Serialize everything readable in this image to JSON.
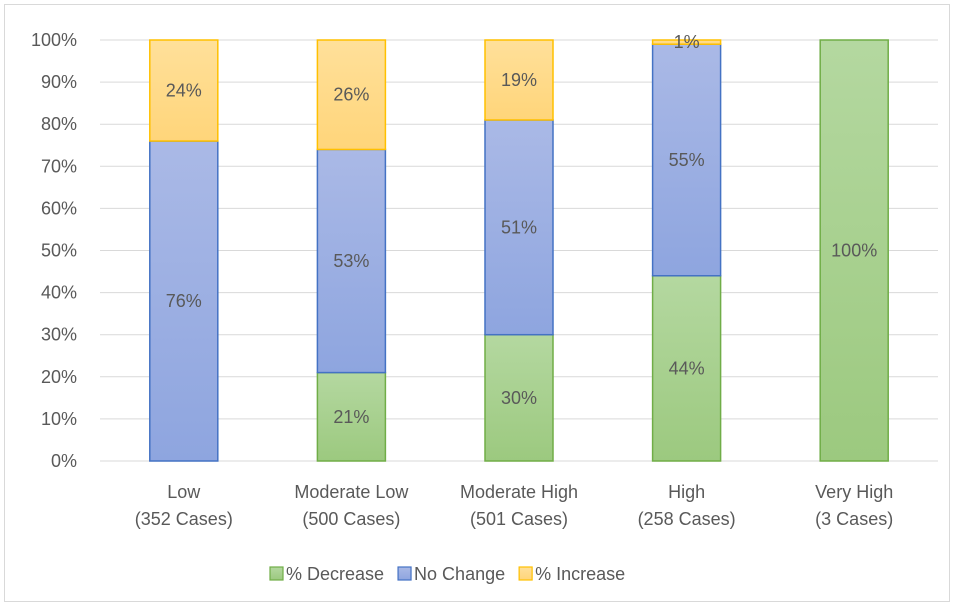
{
  "chart_data": {
    "type": "bar",
    "stacked": "percent",
    "categories": [
      [
        "Low",
        "(352 Cases)"
      ],
      [
        "Moderate Low",
        "(500 Cases)"
      ],
      [
        "Moderate High",
        "(501 Cases)"
      ],
      [
        "High",
        "(258 Cases)"
      ],
      [
        "Very High",
        "(3 Cases)"
      ]
    ],
    "series": [
      {
        "name": "% Decrease",
        "values": [
          0,
          21,
          30,
          44,
          100
        ],
        "labels": [
          "",
          "21%",
          "30%",
          "44%",
          "100%"
        ],
        "color": "#9cc97f",
        "color_light": "#b4d8a0",
        "stroke": "#70ad47"
      },
      {
        "name": "No Change",
        "values": [
          76,
          53,
          51,
          55,
          0
        ],
        "labels": [
          "76%",
          "53%",
          "51%",
          "55%",
          ""
        ],
        "color": "#8ea5df",
        "color_light": "#aab9e6",
        "stroke": "#4472c4"
      },
      {
        "name": "% Increase",
        "values": [
          24,
          26,
          19,
          1,
          0
        ],
        "labels": [
          "24%",
          "26%",
          "19%",
          "1%",
          ""
        ],
        "color": "#ffd57a",
        "color_light": "#ffe09a",
        "stroke": "#ffc000"
      }
    ],
    "y_ticks": [
      "0%",
      "10%",
      "20%",
      "30%",
      "40%",
      "50%",
      "60%",
      "70%",
      "80%",
      "90%",
      "100%"
    ],
    "ylim": [
      0,
      100
    ],
    "grid": true,
    "legend_position": "bottom"
  }
}
